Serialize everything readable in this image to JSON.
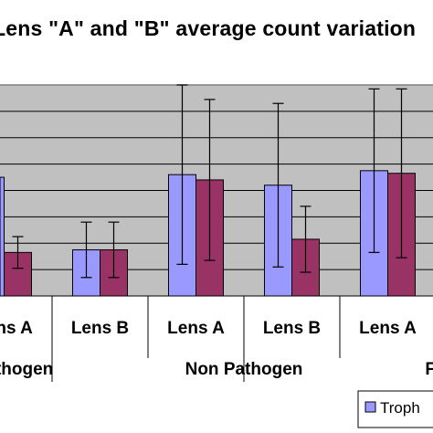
{
  "chart_data": {
    "type": "bar",
    "title": "Lens \"A\" and \"B\" average count variation",
    "group_labels": [
      "Pathogen",
      "Non Pathogen",
      "FL"
    ],
    "categories": [
      "Lens A",
      "Lens B",
      "Lens A",
      "Lens B",
      "Lens A"
    ],
    "series": [
      {
        "name": "Troph",
        "color": "#9999ff",
        "values": [
          null,
          3.5,
          9.2,
          8.4,
          9.5
        ],
        "errors": [
          null,
          2.1,
          6.8,
          6.2,
          6.2
        ]
      },
      {
        "name": "",
        "color": "#993366",
        "values": [
          3.3,
          3.5,
          8.8,
          4.3,
          9.3
        ],
        "errors": [
          1.2,
          2.1,
          6.1,
          2.5,
          6.4
        ]
      }
    ],
    "partial": {
      "first_series_first_value": 9.0
    },
    "ylim": [
      0,
      16
    ],
    "grid": "horizontal",
    "legend": "bottom-right",
    "xlabel": "",
    "ylabel": ""
  }
}
